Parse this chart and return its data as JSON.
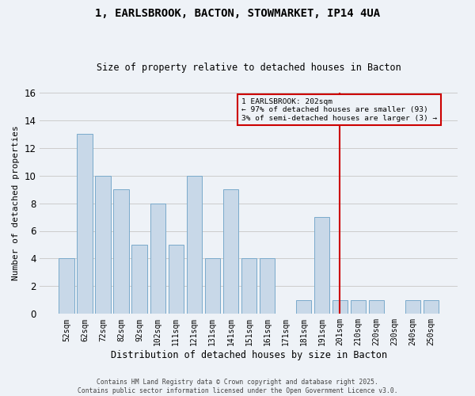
{
  "title": "1, EARLSBROOK, BACTON, STOWMARKET, IP14 4UA",
  "subtitle": "Size of property relative to detached houses in Bacton",
  "xlabel": "Distribution of detached houses by size in Bacton",
  "ylabel": "Number of detached properties",
  "bar_labels": [
    "52sqm",
    "62sqm",
    "72sqm",
    "82sqm",
    "92sqm",
    "102sqm",
    "111sqm",
    "121sqm",
    "131sqm",
    "141sqm",
    "151sqm",
    "161sqm",
    "171sqm",
    "181sqm",
    "191sqm",
    "201sqm",
    "210sqm",
    "220sqm",
    "230sqm",
    "240sqm",
    "250sqm"
  ],
  "bar_values": [
    4,
    13,
    10,
    9,
    5,
    8,
    5,
    10,
    4,
    9,
    4,
    4,
    0,
    1,
    7,
    1,
    1,
    1,
    0,
    1,
    1
  ],
  "bar_color": "#c8d8e8",
  "bar_edge_color": "#7aaacb",
  "grid_color": "#cccccc",
  "background_color": "#eef2f7",
  "red_line_index": 15,
  "annotation_title": "1 EARLSBROOK: 202sqm",
  "annotation_line1": "← 97% of detached houses are smaller (93)",
  "annotation_line2": "3% of semi-detached houses are larger (3) →",
  "annotation_box_color": "#cc0000",
  "ylim": [
    0,
    16
  ],
  "yticks": [
    0,
    2,
    4,
    6,
    8,
    10,
    12,
    14,
    16
  ],
  "footer_line1": "Contains HM Land Registry data © Crown copyright and database right 2025.",
  "footer_line2": "Contains public sector information licensed under the Open Government Licence v3.0."
}
